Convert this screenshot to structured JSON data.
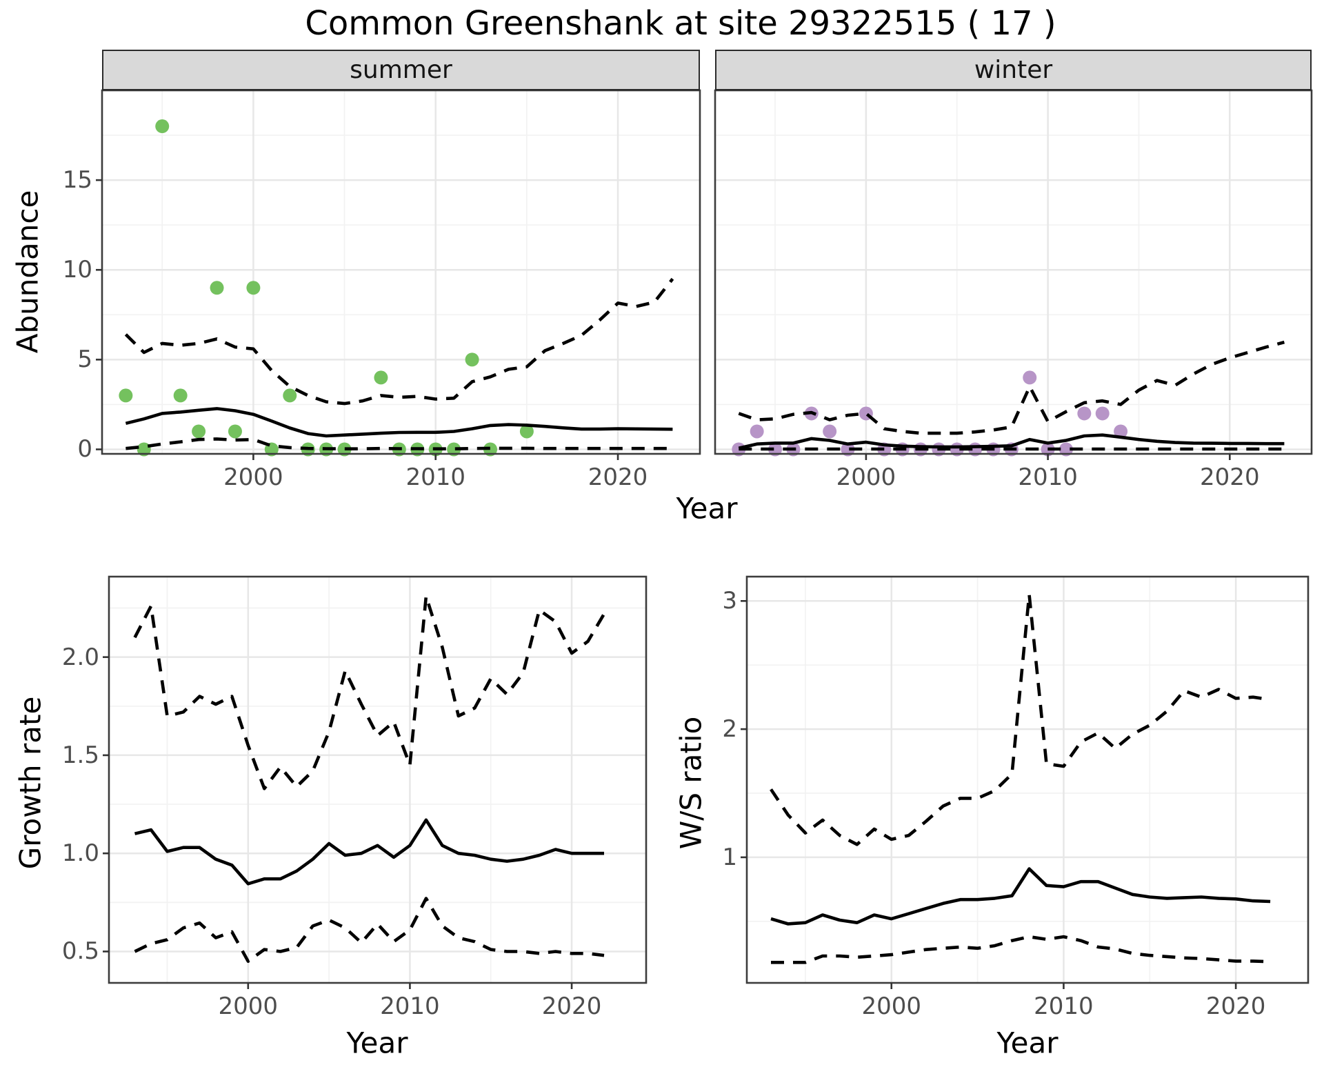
{
  "title": "Common Greenshank at site 29322515 ( 17 )",
  "facets": {
    "summer": "summer",
    "winter": "winter"
  },
  "axis_titles": {
    "abundance": "Abundance",
    "year": "Year",
    "growth": "Growth rate",
    "ws": "W/S ratio"
  },
  "colors": {
    "summer_point": "#74c15e",
    "winter_point": "#b795c7",
    "line": "#000000",
    "strip_background": "#d9d9d9",
    "panel_border": "#3c3c3c",
    "grid": "#e7e7e7",
    "axis_text": "#4d4d4d"
  },
  "chart_data": [
    {
      "id": "abundance_summer",
      "type": "scatter",
      "facet_label": "summer",
      "title": "Common Greenshank at site 29322515 ( 17 )",
      "xlabel": "Year",
      "ylabel": "Abundance",
      "xlim": [
        1991.7,
        2024.5
      ],
      "ylim": [
        -0.25,
        20.0
      ],
      "xticks": [
        2000,
        2010,
        2020
      ],
      "xminor": [
        1995,
        2005,
        2015
      ],
      "yticks": [
        0,
        5,
        10,
        15
      ],
      "yminor": [
        2.5,
        7.5,
        12.5,
        17.5
      ],
      "point_color": "#74c15e",
      "points": {
        "years": [
          1993,
          1994,
          1995,
          1996,
          1997,
          1998,
          1999,
          2000,
          2001,
          2002,
          2003,
          2004,
          2005,
          2007,
          2008,
          2009,
          2010,
          2011,
          2012,
          2013,
          2015
        ],
        "values": [
          3,
          0,
          18,
          3,
          1,
          9,
          1,
          9,
          0,
          3,
          0,
          0,
          0,
          4,
          0,
          0,
          0,
          0,
          5,
          0,
          1
        ]
      },
      "series": [
        {
          "name": "fit",
          "style": "solid",
          "years": [
            1993,
            1994,
            1995,
            1996,
            1997,
            1998,
            1999,
            2000,
            2001,
            2002,
            2003,
            2004,
            2005,
            2006,
            2007,
            2008,
            2009,
            2010,
            2011,
            2012,
            2013,
            2014,
            2015,
            2016,
            2017,
            2018,
            2019,
            2020,
            2021,
            2022,
            2023
          ],
          "values": [
            1.45,
            1.7,
            2.0,
            2.08,
            2.18,
            2.27,
            2.15,
            1.95,
            1.58,
            1.19,
            0.88,
            0.75,
            0.8,
            0.85,
            0.9,
            0.94,
            0.95,
            0.95,
            1.0,
            1.15,
            1.33,
            1.38,
            1.35,
            1.28,
            1.2,
            1.13,
            1.13,
            1.15,
            1.14,
            1.13,
            1.12
          ]
        },
        {
          "name": "upper_ci",
          "style": "dashed",
          "years": [
            1993,
            1994,
            1995,
            1996,
            1997,
            1998,
            1999,
            2000,
            2001,
            2002,
            2003,
            2004,
            2005,
            2006,
            2007,
            2008,
            2009,
            2010,
            2011,
            2012,
            2013,
            2014,
            2015,
            2016,
            2017,
            2018,
            2019,
            2020,
            2021,
            2022,
            2023
          ],
          "values": [
            6.4,
            5.4,
            5.9,
            5.8,
            5.9,
            6.15,
            5.7,
            5.6,
            4.4,
            3.5,
            3.0,
            2.65,
            2.55,
            2.7,
            3.0,
            2.9,
            2.95,
            2.8,
            2.85,
            3.77,
            4.04,
            4.46,
            4.6,
            5.5,
            5.9,
            6.35,
            7.2,
            8.15,
            7.96,
            8.2,
            9.5
          ]
        },
        {
          "name": "lower_ci",
          "style": "dashed",
          "years": [
            1993,
            1994,
            1995,
            1996,
            1997,
            1998,
            1999,
            2000,
            2001,
            2002,
            2003,
            2004,
            2005,
            2006,
            2007,
            2008,
            2009,
            2010,
            2011,
            2012,
            2013,
            2014,
            2015,
            2016,
            2017,
            2018,
            2019,
            2020,
            2021,
            2022,
            2023
          ],
          "values": [
            0.05,
            0.15,
            0.3,
            0.42,
            0.55,
            0.58,
            0.52,
            0.55,
            0.2,
            0.1,
            0.05,
            0.04,
            0.03,
            0.03,
            0.05,
            0.04,
            0.04,
            0.03,
            0.03,
            0.05,
            0.06,
            0.06,
            0.06,
            0.05,
            0.05,
            0.05,
            0.05,
            0.05,
            0.05,
            0.05,
            0.05
          ]
        }
      ]
    },
    {
      "id": "abundance_winter",
      "type": "scatter",
      "facet_label": "winter",
      "xlabel": "Year",
      "ylabel": "Abundance",
      "xlim": [
        1991.7,
        2024.5
      ],
      "ylim": [
        -0.25,
        20.0
      ],
      "xticks": [
        2000,
        2010,
        2020
      ],
      "xminor": [
        1995,
        2005,
        2015
      ],
      "yticks": [
        0,
        5,
        10,
        15
      ],
      "yminor": [
        2.5,
        7.5,
        12.5,
        17.5
      ],
      "point_color": "#b795c7",
      "points": {
        "years": [
          1993,
          1994,
          1995,
          1996,
          1997,
          1998,
          1999,
          2000,
          2001,
          2002,
          2003,
          2004,
          2005,
          2006,
          2007,
          2008,
          2009,
          2010,
          2011,
          2012,
          2013,
          2014
        ],
        "values": [
          0,
          1,
          0,
          0,
          2,
          1,
          0,
          2,
          0,
          0,
          0,
          0,
          0,
          0,
          0,
          0,
          4,
          0,
          0,
          2,
          2,
          1
        ]
      },
      "series": [
        {
          "name": "fit",
          "style": "solid",
          "years": [
            1993,
            1994,
            1995,
            1996,
            1997,
            1998,
            1999,
            2000,
            2001,
            2002,
            2003,
            2004,
            2005,
            2006,
            2007,
            2008,
            2009,
            2010,
            2011,
            2012,
            2013,
            2014,
            2015,
            2016,
            2017,
            2018,
            2019,
            2020,
            2021,
            2022,
            2023
          ],
          "values": [
            0.07,
            0.3,
            0.35,
            0.35,
            0.6,
            0.5,
            0.3,
            0.4,
            0.25,
            0.18,
            0.15,
            0.14,
            0.14,
            0.15,
            0.17,
            0.2,
            0.55,
            0.35,
            0.5,
            0.75,
            0.8,
            0.68,
            0.55,
            0.45,
            0.38,
            0.35,
            0.34,
            0.33,
            0.33,
            0.32,
            0.32
          ]
        },
        {
          "name": "upper_ci",
          "style": "dashed",
          "years": [
            1993,
            1994,
            1995,
            1996,
            1997,
            1998,
            1999,
            2000,
            2001,
            2002,
            2003,
            2004,
            2005,
            2006,
            2007,
            2008,
            2009,
            2010,
            2011,
            2012,
            2013,
            2014,
            2015,
            2016,
            2017,
            2018,
            2019,
            2020,
            2021,
            2022,
            2023
          ],
          "values": [
            2.0,
            1.65,
            1.7,
            1.95,
            2.05,
            1.65,
            1.9,
            2.0,
            1.15,
            1.0,
            0.9,
            0.9,
            0.9,
            0.97,
            1.08,
            1.25,
            3.5,
            1.55,
            2.1,
            2.6,
            2.7,
            2.5,
            3.3,
            3.84,
            3.57,
            4.2,
            4.73,
            5.1,
            5.4,
            5.7,
            5.97
          ]
        },
        {
          "name": "lower_ci",
          "style": "dashed",
          "years": [
            1993,
            1994,
            1995,
            1996,
            1997,
            1998,
            1999,
            2000,
            2001,
            2002,
            2003,
            2004,
            2005,
            2006,
            2007,
            2008,
            2009,
            2010,
            2011,
            2012,
            2013,
            2014,
            2015,
            2016,
            2017,
            2018,
            2019,
            2020,
            2021,
            2022,
            2023
          ],
          "values": [
            0.02,
            0.02,
            0.02,
            0.02,
            0.02,
            0.02,
            0.02,
            0.02,
            0.02,
            0.02,
            0.02,
            0.02,
            0.02,
            0.02,
            0.02,
            0.02,
            0.02,
            0.02,
            0.02,
            0.02,
            0.02,
            0.02,
            0.02,
            0.02,
            0.02,
            0.02,
            0.02,
            0.02,
            0.02,
            0.02,
            0.02
          ]
        }
      ]
    },
    {
      "id": "growth_rate",
      "type": "line",
      "xlabel": "Year",
      "ylabel": "Growth rate",
      "xlim": [
        1991.4,
        2024.6
      ],
      "ylim": [
        0.34,
        2.41
      ],
      "xticks": [
        2000,
        2010,
        2020
      ],
      "xminor": [
        1995,
        2005,
        2015
      ],
      "yticks": [
        0.5,
        1.0,
        1.5,
        2.0
      ],
      "ytick_labels": [
        "0.5",
        "1.0",
        "1.5",
        "2.0"
      ],
      "yminor": [
        0.75,
        1.25,
        1.75,
        2.25
      ],
      "series": [
        {
          "name": "fit",
          "style": "solid",
          "years": [
            1993,
            1994,
            1995,
            1996,
            1997,
            1998,
            1999,
            2000,
            2001,
            2002,
            2003,
            2004,
            2005,
            2006,
            2007,
            2008,
            2009,
            2010,
            2011,
            2012,
            2013,
            2014,
            2015,
            2016,
            2017,
            2018,
            2019,
            2020,
            2021,
            2022
          ],
          "values": [
            1.1,
            1.12,
            1.01,
            1.03,
            1.03,
            0.97,
            0.94,
            0.845,
            0.87,
            0.87,
            0.91,
            0.97,
            1.05,
            0.99,
            1.0,
            1.04,
            0.98,
            1.04,
            1.17,
            1.04,
            1.0,
            0.99,
            0.97,
            0.96,
            0.97,
            0.99,
            1.02,
            1.0,
            1.0,
            1.0
          ]
        },
        {
          "name": "upper_ci",
          "style": "dashed",
          "years": [
            1993,
            1994,
            1995,
            1996,
            1997,
            1998,
            1999,
            2000,
            2001,
            2002,
            2003,
            2004,
            2005,
            2006,
            2007,
            2008,
            2009,
            2010,
            2011,
            2012,
            2013,
            2014,
            2015,
            2016,
            2017,
            2018,
            2019,
            2020,
            2021,
            2022
          ],
          "values": [
            2.1,
            2.26,
            1.7,
            1.72,
            1.8,
            1.76,
            1.8,
            1.55,
            1.33,
            1.44,
            1.34,
            1.42,
            1.62,
            1.93,
            1.76,
            1.6,
            1.67,
            1.45,
            2.31,
            2.05,
            1.7,
            1.74,
            1.89,
            1.81,
            1.92,
            2.24,
            2.18,
            2.02,
            2.08,
            2.22
          ]
        },
        {
          "name": "lower_ci",
          "style": "dashed",
          "years": [
            1993,
            1994,
            1995,
            1996,
            1997,
            1998,
            1999,
            2000,
            2001,
            2002,
            2003,
            2004,
            2005,
            2006,
            2007,
            2008,
            2009,
            2010,
            2011,
            2012,
            2013,
            2014,
            2015,
            2016,
            2017,
            2018,
            2019,
            2020,
            2021,
            2022
          ],
          "values": [
            0.5,
            0.54,
            0.56,
            0.62,
            0.645,
            0.57,
            0.6,
            0.45,
            0.51,
            0.5,
            0.52,
            0.63,
            0.66,
            0.62,
            0.545,
            0.64,
            0.55,
            0.61,
            0.77,
            0.63,
            0.57,
            0.55,
            0.51,
            0.5,
            0.5,
            0.49,
            0.5,
            0.49,
            0.49,
            0.48
          ]
        }
      ]
    },
    {
      "id": "ws_ratio",
      "type": "line",
      "xlabel": "Year",
      "ylabel": "W/S ratio",
      "xlim": [
        1991.6,
        2024.2
      ],
      "ylim": [
        0.02,
        3.19
      ],
      "xticks": [
        2000,
        2010,
        2020
      ],
      "xminor": [
        1995,
        2005,
        2015
      ],
      "yticks": [
        1,
        2,
        3
      ],
      "ytick_labels": [
        "1",
        "2",
        "3"
      ],
      "yminor": [
        0.5,
        1.5,
        2.5
      ],
      "series": [
        {
          "name": "fit",
          "style": "solid",
          "years": [
            1993,
            1994,
            1995,
            1996,
            1997,
            1998,
            1999,
            2000,
            2001,
            2002,
            2003,
            2004,
            2005,
            2006,
            2007,
            2008,
            2009,
            2010,
            2011,
            2012,
            2013,
            2014,
            2015,
            2016,
            2017,
            2018,
            2019,
            2020,
            2021,
            2022
          ],
          "values": [
            0.52,
            0.48,
            0.49,
            0.55,
            0.51,
            0.49,
            0.55,
            0.52,
            0.56,
            0.6,
            0.64,
            0.67,
            0.67,
            0.68,
            0.7,
            0.91,
            0.78,
            0.77,
            0.81,
            0.81,
            0.76,
            0.71,
            0.69,
            0.68,
            0.685,
            0.69,
            0.68,
            0.675,
            0.66,
            0.655
          ]
        },
        {
          "name": "upper_ci",
          "style": "dashed",
          "years": [
            1993,
            1994,
            1995,
            1996,
            1997,
            1998,
            1999,
            2000,
            2001,
            2002,
            2003,
            2004,
            2005,
            2006,
            2007,
            2008,
            2009,
            2010,
            2011,
            2012,
            2013,
            2014,
            2015,
            2016,
            2017,
            2018,
            2019,
            2020,
            2021,
            2022
          ],
          "values": [
            1.53,
            1.33,
            1.19,
            1.29,
            1.17,
            1.1,
            1.22,
            1.14,
            1.17,
            1.28,
            1.4,
            1.46,
            1.46,
            1.52,
            1.65,
            3.05,
            1.73,
            1.71,
            1.9,
            1.97,
            1.85,
            1.96,
            2.03,
            2.14,
            2.3,
            2.25,
            2.31,
            2.24,
            2.25,
            2.23
          ]
        },
        {
          "name": "lower_ci",
          "style": "dashed",
          "years": [
            1993,
            1994,
            1995,
            1996,
            1997,
            1998,
            1999,
            2000,
            2001,
            2002,
            2003,
            2004,
            2005,
            2006,
            2007,
            2008,
            2009,
            2010,
            2011,
            2012,
            2013,
            2014,
            2015,
            2016,
            2017,
            2018,
            2019,
            2020,
            2021,
            2022
          ],
          "values": [
            0.18,
            0.18,
            0.18,
            0.23,
            0.23,
            0.22,
            0.23,
            0.24,
            0.26,
            0.28,
            0.29,
            0.3,
            0.29,
            0.31,
            0.35,
            0.38,
            0.36,
            0.38,
            0.35,
            0.3,
            0.285,
            0.25,
            0.235,
            0.225,
            0.215,
            0.21,
            0.2,
            0.19,
            0.19,
            0.185
          ]
        }
      ]
    }
  ]
}
